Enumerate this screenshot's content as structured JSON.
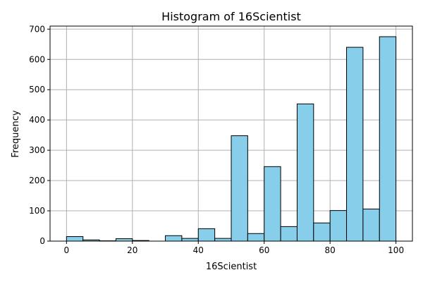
{
  "chart_data": {
    "type": "bar",
    "title": "Histogram of 16Scientist",
    "xlabel": "16Scientist",
    "ylabel": "Frequency",
    "xlim": [
      -5,
      105
    ],
    "ylim": [
      0,
      710
    ],
    "x_ticks": [
      0,
      20,
      40,
      60,
      80,
      100
    ],
    "y_ticks": [
      0,
      100,
      200,
      300,
      400,
      500,
      600,
      700
    ],
    "grid": true,
    "bar_color": "#87CEEB",
    "edge_color": "#000000",
    "bins": [
      {
        "x0": 0,
        "x1": 5,
        "count": 15
      },
      {
        "x0": 5,
        "x1": 10,
        "count": 4
      },
      {
        "x0": 10,
        "x1": 15,
        "count": 1
      },
      {
        "x0": 15,
        "x1": 20,
        "count": 8
      },
      {
        "x0": 20,
        "x1": 25,
        "count": 2
      },
      {
        "x0": 25,
        "x1": 30,
        "count": 0
      },
      {
        "x0": 30,
        "x1": 35,
        "count": 18
      },
      {
        "x0": 35,
        "x1": 40,
        "count": 9
      },
      {
        "x0": 40,
        "x1": 45,
        "count": 41
      },
      {
        "x0": 45,
        "x1": 50,
        "count": 9
      },
      {
        "x0": 50,
        "x1": 55,
        "count": 348
      },
      {
        "x0": 55,
        "x1": 60,
        "count": 25
      },
      {
        "x0": 60,
        "x1": 65,
        "count": 246
      },
      {
        "x0": 65,
        "x1": 70,
        "count": 48
      },
      {
        "x0": 70,
        "x1": 75,
        "count": 453
      },
      {
        "x0": 75,
        "x1": 80,
        "count": 60
      },
      {
        "x0": 80,
        "x1": 85,
        "count": 101
      },
      {
        "x0": 85,
        "x1": 90,
        "count": 640
      },
      {
        "x0": 90,
        "x1": 95,
        "count": 106
      },
      {
        "x0": 95,
        "x1": 100,
        "count": 675
      }
    ]
  }
}
